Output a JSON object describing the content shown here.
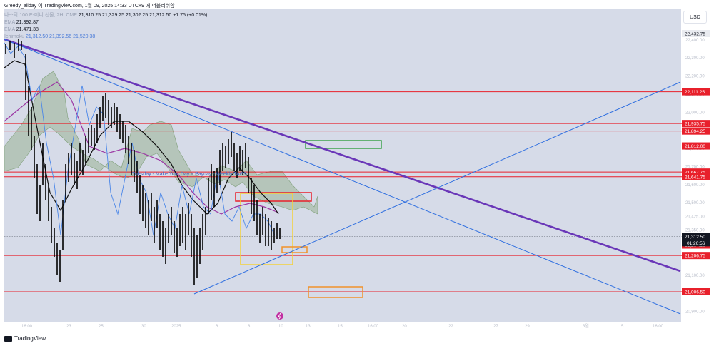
{
  "header": {
    "caption": "Greedy_allday 이 TradingView.com, 1월 09, 2025 14:33 UTC+9 에 퍼블리쉬함",
    "symbol_line": "나스닥 100 E-미니 선물, 2H, CME",
    "ohlc": "21,310.25  21,329.25  21,302.25  21,312.50  +1.75 (+0.01%)"
  },
  "legend": {
    "ema1_label": "EMA",
    "ema1_value": "21,392.87",
    "ema2_label": "EMA",
    "ema2_value": "21,471.38",
    "ichimoku_label": "Ichimoku",
    "ichimoku_values": "21,312.50  21,392.56  21,520.38"
  },
  "currency": "USD",
  "price_axis": {
    "faint_ticks": [
      "22,400.00",
      "22,300.00",
      "22,200.00",
      "22,100.00",
      "22,000.00",
      "21,900.00",
      "21,800.00",
      "21,700.00",
      "21,600.00",
      "21,500.00",
      "21,425.00",
      "21,350.00",
      "21,100.00",
      "21,000.00",
      "20,900.00"
    ],
    "top_label": "22,432.75",
    "levels": [
      "22,111.25",
      "21,935.75",
      "21,894.25",
      "21,812.00",
      "21,667.75",
      "21,641.75",
      "21,264.50",
      "21,206.75",
      "21,006.50"
    ],
    "current_price": "21,312.50",
    "countdown": "01:26:56"
  },
  "time_axis": [
    "16:00",
    "23",
    "25",
    "30",
    "2025",
    "6",
    "8",
    "10",
    "13",
    "15",
    "16:00",
    "20",
    "22",
    "27",
    "29",
    "3월",
    "5",
    "16:00"
  ],
  "annotation": "Tuesday - Make Your Day a Payday - Weekly TAGS",
  "footer": {
    "logo": "TradingView"
  },
  "colors": {
    "background": "#d6dbe8",
    "candle": "#000000",
    "level_line": "#e8202b",
    "purple_trend": "#6a37b8",
    "blue_trend": "#2f6fe0",
    "ichimoku_cloud": "#9ab394",
    "ema_purple": "#9b35a3",
    "ema_black": "#111111",
    "box_yellow": "#f3d23a",
    "box_green": "#3fa34d",
    "box_orange": "#f0922b",
    "price_label_bg": "#e8202b"
  }
}
